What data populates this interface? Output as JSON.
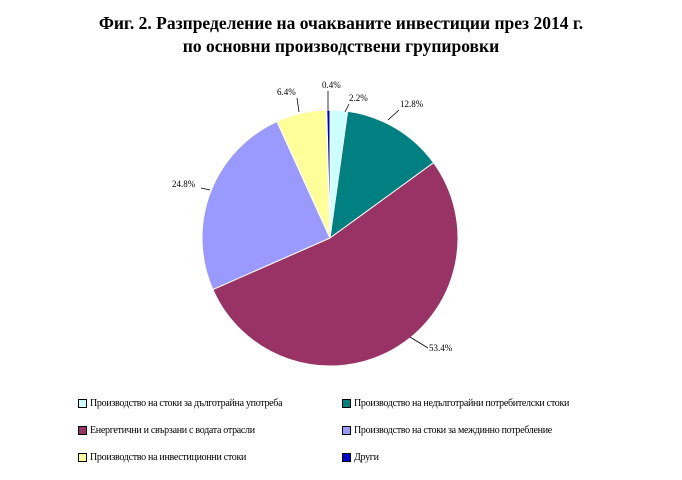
{
  "title_line1": "Фиг. 2. Разпределение на очакваните инвестиции през 2014 г.",
  "title_line2": "по основни производствени групировки",
  "chart_data": {
    "type": "pie",
    "title": "Фиг. 2. Разпределение на очакваните инвестиции през 2014 г. по основни производствени групировки",
    "legend_position": "bottom",
    "slices": [
      {
        "name": "Производство на стоки за дълготрайна употреба",
        "value": 2.2,
        "label": "2.2%",
        "color": "#CCFFFF"
      },
      {
        "name": "Производство на недълготрайни потребителски стоки",
        "value": 12.8,
        "label": "12.8%",
        "color": "#008080"
      },
      {
        "name": "Енергетични и свързани с водата отрасли",
        "value": 53.4,
        "label": "53.4%",
        "color": "#993366"
      },
      {
        "name": "Производство на стоки за междинно потребление",
        "value": 24.8,
        "label": "24.8%",
        "color": "#9999FF"
      },
      {
        "name": "Производство на инвестиционни стоки",
        "value": 6.4,
        "label": "6.4%",
        "color": "#FFFF99"
      },
      {
        "name": "Други",
        "value": 0.4,
        "label": "0.4%",
        "color": "#0000CC"
      }
    ]
  }
}
